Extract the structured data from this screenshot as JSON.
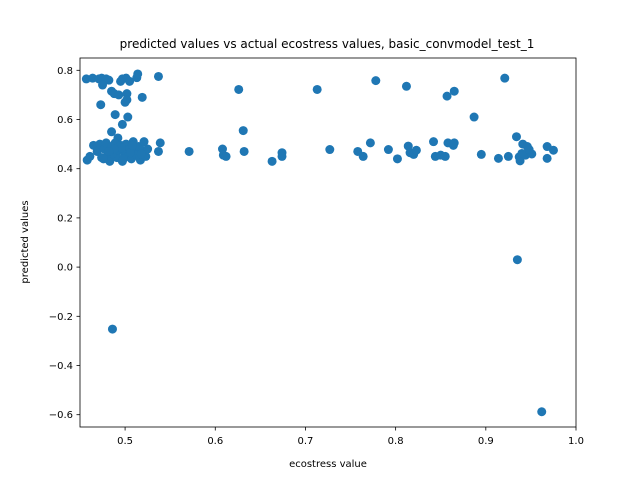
{
  "chart_data": {
    "type": "scatter",
    "title": "predicted values vs actual ecostress values, basic_convmodel_test_1",
    "xlabel": "ecostress value",
    "ylabel": "predicted values",
    "xlim": [
      0.45,
      1.0
    ],
    "ylim": [
      -0.65,
      0.85
    ],
    "xticks": [
      0.5,
      0.6,
      0.7,
      0.8,
      0.9,
      1.0
    ],
    "xtick_labels": [
      "0.5",
      "0.6",
      "0.7",
      "0.8",
      "0.9",
      "1.0"
    ],
    "yticks": [
      -0.6,
      -0.4,
      -0.2,
      0.0,
      0.2,
      0.4,
      0.6,
      0.8
    ],
    "ytick_labels": [
      "−0.6",
      "−0.4",
      "−0.2",
      "0.0",
      "0.2",
      "0.4",
      "0.6",
      "0.8"
    ],
    "grid": false,
    "marker_color": "#1f77b4",
    "series": [
      {
        "points": [
          [
            0.457,
            0.765
          ],
          [
            0.464,
            0.768
          ],
          [
            0.471,
            0.765
          ],
          [
            0.474,
            0.768
          ],
          [
            0.479,
            0.765
          ],
          [
            0.482,
            0.76
          ],
          [
            0.475,
            0.74
          ],
          [
            0.485,
            0.715
          ],
          [
            0.488,
            0.705
          ],
          [
            0.493,
            0.7
          ],
          [
            0.497,
            0.765
          ],
          [
            0.501,
            0.768
          ],
          [
            0.505,
            0.755
          ],
          [
            0.513,
            0.77
          ],
          [
            0.514,
            0.785
          ],
          [
            0.537,
            0.775
          ],
          [
            0.495,
            0.755
          ],
          [
            0.502,
            0.705
          ],
          [
            0.502,
            0.68
          ],
          [
            0.5,
            0.67
          ],
          [
            0.519,
            0.69
          ],
          [
            0.473,
            0.66
          ],
          [
            0.489,
            0.62
          ],
          [
            0.503,
            0.61
          ],
          [
            0.497,
            0.58
          ],
          [
            0.485,
            0.55
          ],
          [
            0.539,
            0.505
          ],
          [
            0.492,
            0.525
          ],
          [
            0.458,
            0.435
          ],
          [
            0.461,
            0.45
          ],
          [
            0.465,
            0.495
          ],
          [
            0.469,
            0.47
          ],
          [
            0.472,
            0.5
          ],
          [
            0.474,
            0.445
          ],
          [
            0.477,
            0.48
          ],
          [
            0.479,
            0.505
          ],
          [
            0.481,
            0.455
          ],
          [
            0.483,
            0.43
          ],
          [
            0.485,
            0.49
          ],
          [
            0.487,
            0.47
          ],
          [
            0.489,
            0.505
          ],
          [
            0.491,
            0.445
          ],
          [
            0.493,
            0.475
          ],
          [
            0.495,
            0.495
          ],
          [
            0.497,
            0.43
          ],
          [
            0.499,
            0.465
          ],
          [
            0.501,
            0.5
          ],
          [
            0.503,
            0.45
          ],
          [
            0.505,
            0.48
          ],
          [
            0.507,
            0.44
          ],
          [
            0.509,
            0.51
          ],
          [
            0.511,
            0.47
          ],
          [
            0.513,
            0.455
          ],
          [
            0.515,
            0.49
          ],
          [
            0.517,
            0.435
          ],
          [
            0.519,
            0.475
          ],
          [
            0.521,
            0.51
          ],
          [
            0.523,
            0.45
          ],
          [
            0.525,
            0.48
          ],
          [
            0.537,
            0.47
          ],
          [
            0.476,
            0.44
          ],
          [
            0.486,
            0.46
          ],
          [
            0.496,
            0.485
          ],
          [
            0.506,
            0.465
          ],
          [
            0.516,
            0.445
          ],
          [
            0.498,
            0.44
          ],
          [
            0.488,
            0.48
          ],
          [
            0.508,
            0.495
          ],
          [
            0.518,
            0.46
          ],
          [
            0.482,
            0.47
          ],
          [
            0.486,
            -0.252
          ],
          [
            0.571,
            0.47
          ],
          [
            0.608,
            0.48
          ],
          [
            0.609,
            0.455
          ],
          [
            0.612,
            0.45
          ],
          [
            0.626,
            0.722
          ],
          [
            0.631,
            0.555
          ],
          [
            0.632,
            0.47
          ],
          [
            0.663,
            0.43
          ],
          [
            0.674,
            0.465
          ],
          [
            0.674,
            0.45
          ],
          [
            0.713,
            0.722
          ],
          [
            0.727,
            0.478
          ],
          [
            0.758,
            0.47
          ],
          [
            0.764,
            0.45
          ],
          [
            0.772,
            0.505
          ],
          [
            0.778,
            0.758
          ],
          [
            0.792,
            0.478
          ],
          [
            0.802,
            0.44
          ],
          [
            0.812,
            0.735
          ],
          [
            0.814,
            0.492
          ],
          [
            0.816,
            0.465
          ],
          [
            0.82,
            0.458
          ],
          [
            0.823,
            0.475
          ],
          [
            0.842,
            0.51
          ],
          [
            0.844,
            0.45
          ],
          [
            0.85,
            0.455
          ],
          [
            0.855,
            0.45
          ],
          [
            0.857,
            0.695
          ],
          [
            0.858,
            0.505
          ],
          [
            0.864,
            0.495
          ],
          [
            0.865,
            0.715
          ],
          [
            0.865,
            0.505
          ],
          [
            0.887,
            0.61
          ],
          [
            0.895,
            0.458
          ],
          [
            0.914,
            0.442
          ],
          [
            0.921,
            0.768
          ],
          [
            0.925,
            0.45
          ],
          [
            0.934,
            0.53
          ],
          [
            0.935,
            0.03
          ],
          [
            0.937,
            0.448
          ],
          [
            0.938,
            0.432
          ],
          [
            0.941,
            0.5
          ],
          [
            0.944,
            0.455
          ],
          [
            0.946,
            0.49
          ],
          [
            0.951,
            0.46
          ],
          [
            0.962,
            -0.588
          ],
          [
            0.968,
            0.49
          ],
          [
            0.968,
            0.442
          ],
          [
            0.975,
            0.475
          ],
          [
            0.94,
            0.462
          ],
          [
            0.948,
            0.478
          ]
        ]
      }
    ]
  }
}
